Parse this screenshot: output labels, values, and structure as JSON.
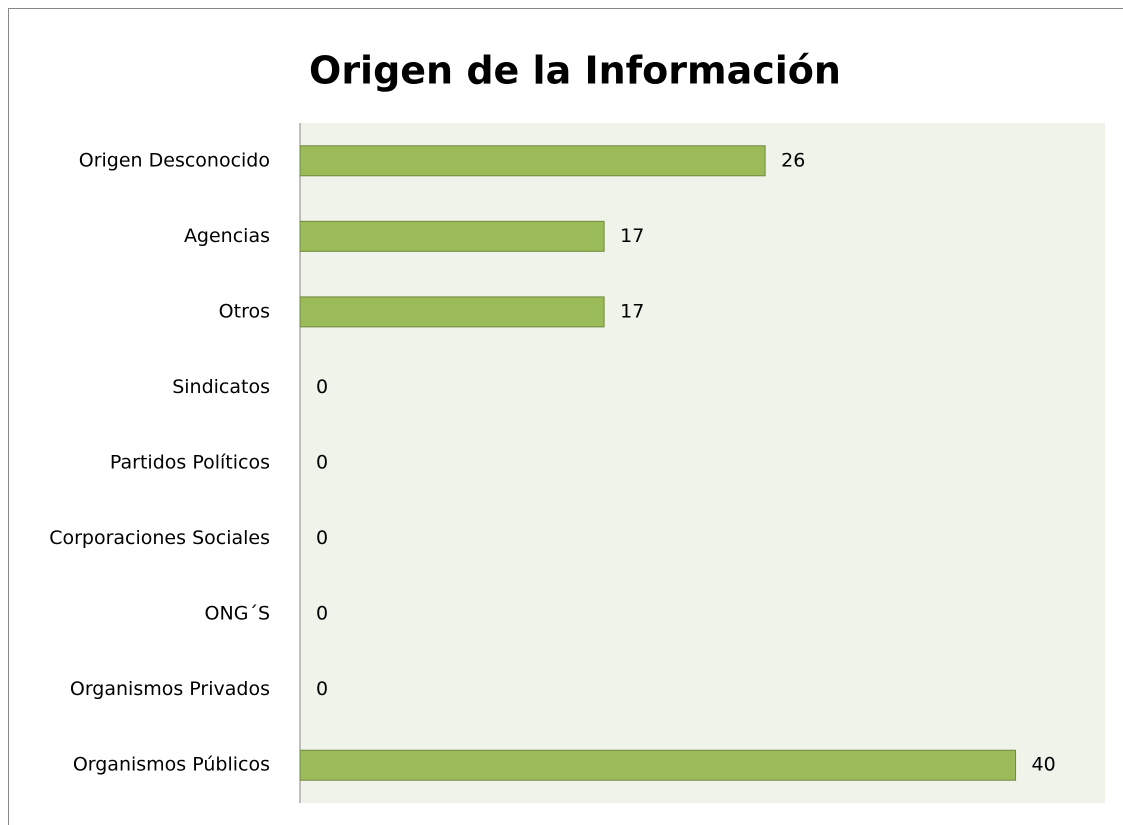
{
  "chart_data": {
    "type": "bar",
    "orientation": "horizontal",
    "title": "Origen de la Información",
    "categories": [
      "Origen Desconocido",
      "Agencias",
      "Otros",
      "Sindicatos",
      "Partidos Políticos",
      "Corporaciones Sociales",
      "ONG´S",
      "Organismos Privados",
      "Organismos Públicos"
    ],
    "values": [
      26,
      17,
      17,
      0,
      0,
      0,
      0,
      0,
      40
    ],
    "color": "#9bbb59",
    "xlim": [
      0,
      45
    ]
  }
}
